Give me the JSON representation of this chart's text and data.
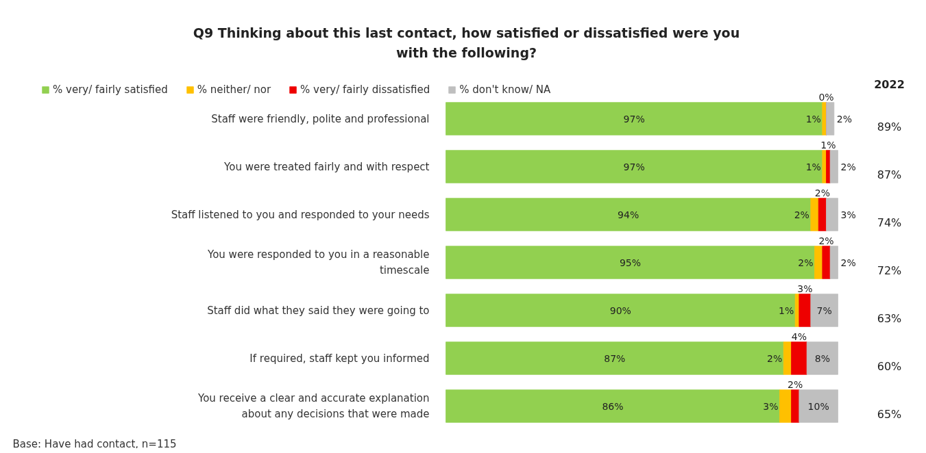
{
  "chart_data": {
    "type": "bar",
    "orientation": "horizontal",
    "stacked": true,
    "grid": false,
    "legend": "top",
    "title": "Q9 Thinking about this last contact, how satisfied or dissatisfied were you with the following?",
    "categories": [
      "Staff were friendly, polite and professional",
      "You were treated fairly and with respect",
      "Staff listened to you and responded to your needs",
      "You were responded to you in a reasonable timescale",
      "Staff did what they said they were going to",
      "If required, staff kept you informed",
      "You receive a clear and accurate explanation about any decisions that were made"
    ],
    "series": [
      {
        "name": "% very/ fairly satisfied",
        "color": "#92d050",
        "values": [
          97,
          97,
          94,
          95,
          90,
          87,
          86
        ],
        "value_labels": [
          "97%",
          "97%",
          "94%",
          "95%",
          "90%",
          "87%",
          "86%"
        ]
      },
      {
        "name": "% neither/ nor",
        "color": "#ffc000",
        "values": [
          1,
          1,
          2,
          2,
          1,
          2,
          3
        ],
        "value_labels": [
          "1%",
          "1%",
          "2%",
          "2%",
          "1%",
          "2%",
          "3%"
        ]
      },
      {
        "name": "% very/ fairly dissatisfied",
        "color": "#ee0000",
        "values": [
          0,
          1,
          2,
          2,
          3,
          4,
          2
        ],
        "value_labels": [
          "0%",
          "1%",
          "2%",
          "2%",
          "3%",
          "4%",
          "2%"
        ]
      },
      {
        "name": "% don't know/ NA",
        "color": "#bfbfbf",
        "values": [
          2,
          2,
          3,
          2,
          7,
          8,
          10
        ],
        "value_labels": [
          "2%",
          "2%",
          "3%",
          "2%",
          "7%",
          "8%",
          "10%"
        ]
      }
    ],
    "annotations": [
      "2022",
      "89%",
      "87%",
      "74%",
      "72%",
      "63%",
      "60%",
      "65%",
      "Base: Have had contact, n=115"
    ]
  }
}
